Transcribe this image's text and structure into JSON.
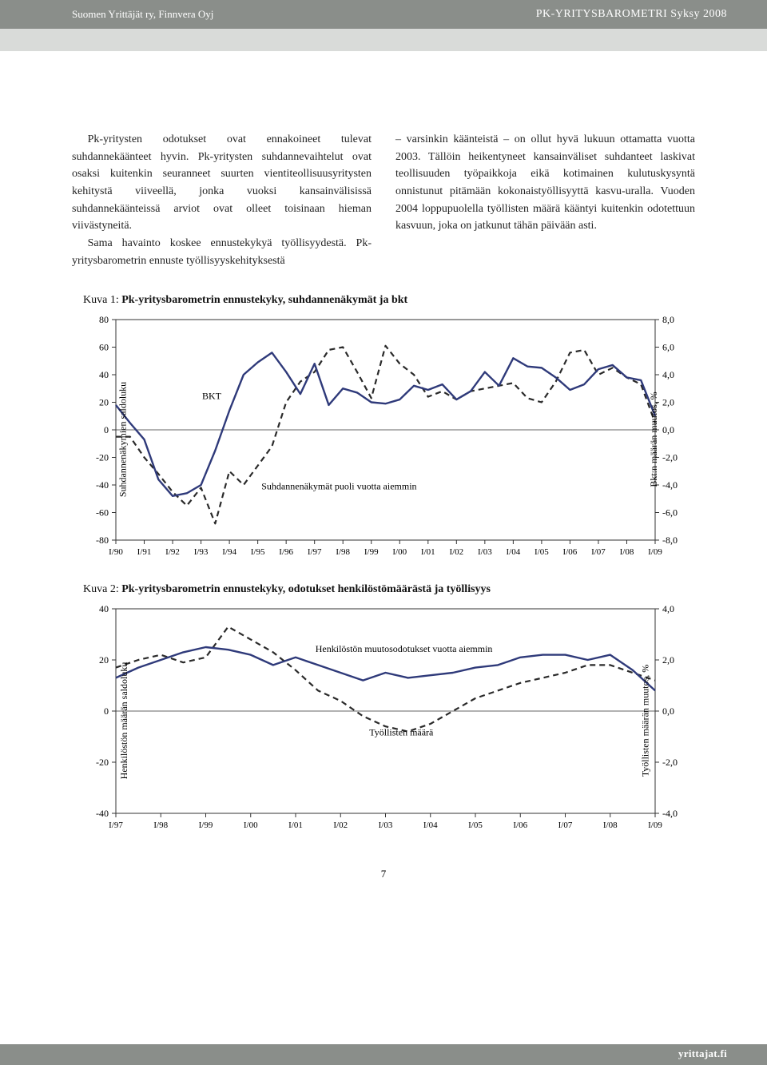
{
  "header": {
    "left": "Suomen Yrittäjät ry, Finnvera Oyj",
    "right_prefix": "PK-YRITYSBAROMETRI",
    "right_suffix": " Syksy 2008"
  },
  "body": {
    "col1_p1": "Pk-yritysten odotukset ovat ennakoineet tulevat suhdannekäänteet hyvin. Pk-yritysten suhdannevaihtelut ovat osaksi kuitenkin seuranneet suurten vientiteollisuusyritysten kehitystä viiveellä, jonka vuoksi kansainvälisissä suhdannekäänteissä arviot ovat olleet toisinaan hieman viivästyneitä.",
    "col1_p2": "Sama havainto koskee ennustekykyä työllisyydestä. Pk-yritysbarometrin ennuste työllisyyskehityksestä",
    "col2_p1": "– varsinkin käänteistä – on ollut hyvä lukuun ottamatta vuotta 2003. Tällöin heikentyneet kansainväliset suhdanteet laskivat teollisuuden työpaikkoja eikä kotimainen kulutuskysyntä onnistunut pitämään kokonaistyöllisyyttä kasvu-uralla. Vuoden 2004 loppupuolella työllisten määrä kääntyi kuitenkin odotettuun kasvuun, joka on jatkunut tähän päivään asti."
  },
  "chart1": {
    "prefix": "Kuva 1:  ",
    "title": "Pk-yritysbarometrin ennustekyky, suhdannenäkymät ja bkt",
    "left_axis_label": "Suhdannenäkymien saldoluku",
    "right_axis_label": "Bkt:n määrän muutos, %",
    "series_label_1": "BKT",
    "series_label_2": "Suhdannenäkymät puoli vuotta aiemmin",
    "y_left": {
      "min": -80,
      "max": 80,
      "ticks": [
        -80,
        -60,
        -40,
        -20,
        0,
        20,
        40,
        60,
        80
      ]
    },
    "y_right": {
      "min": -8.0,
      "max": 8.0,
      "ticks": [
        "-8,0",
        "-6,0",
        "-4,0",
        "-2,0",
        "0,0",
        "2,0",
        "4,0",
        "6,0",
        "8,0"
      ]
    },
    "x_labels": [
      "I/90",
      "I/91",
      "I/92",
      "I/93",
      "I/94",
      "I/95",
      "I/96",
      "I/97",
      "I/98",
      "I/99",
      "I/00",
      "I/01",
      "I/02",
      "I/03",
      "I/04",
      "I/05",
      "I/06",
      "I/07",
      "I/08",
      "I/09"
    ],
    "series_solid": [
      18,
      5,
      -7,
      -36,
      -48,
      -46,
      -40,
      -15,
      14,
      40,
      49,
      56,
      42,
      26,
      48,
      18,
      30,
      27,
      20,
      19,
      22,
      32,
      29,
      33,
      22,
      28,
      42,
      32,
      52,
      46,
      45,
      38,
      29,
      33,
      44,
      47,
      38,
      36,
      10
    ],
    "series_dashed": [
      -5,
      -5,
      -20,
      -32,
      -45,
      -55,
      -42,
      -68,
      -30,
      -40,
      -26,
      -12,
      20,
      35,
      42,
      58,
      60,
      42,
      23,
      61,
      48,
      40,
      24,
      28,
      22,
      28,
      30,
      32,
      34,
      23,
      20,
      35,
      56,
      58,
      40,
      45,
      38,
      33,
      5
    ],
    "colors": {
      "solid": "#2f3a7a",
      "dashed": "#2a2a2a",
      "axis": "#333333",
      "grid": "#888888",
      "bg": "#ffffff"
    },
    "line_width_solid": 2.4,
    "line_width_dashed": 2.2,
    "dash_pattern": "7,5"
  },
  "chart2": {
    "prefix": "Kuva 2:  ",
    "title": "Pk-yritysbarometrin ennustekyky, odotukset henkilöstömäärästä ja työllisyys",
    "left_axis_label": "Henkilöstön määrän saldoluku",
    "right_axis_label": "Työllisten määrän muutos, %",
    "series_label_1": "Henkilöstön muutosodotukset vuotta aiemmin",
    "series_label_2": "Työllisten määrä",
    "y_left": {
      "min": -40,
      "max": 40,
      "ticks": [
        -40,
        -20,
        0,
        20,
        40
      ]
    },
    "y_right": {
      "min": -4.0,
      "max": 4.0,
      "ticks": [
        "-4,0",
        "-2,0",
        "0,0",
        "2,0",
        "4,0"
      ]
    },
    "x_labels": [
      "I/97",
      "I/98",
      "I/99",
      "I/00",
      "I/01",
      "I/02",
      "I/03",
      "I/04",
      "I/05",
      "I/06",
      "I/07",
      "I/08",
      "I/09"
    ],
    "series_solid": [
      13,
      17,
      20,
      23,
      25,
      24,
      22,
      18,
      21,
      18,
      15,
      12,
      15,
      13,
      14,
      15,
      17,
      18,
      21,
      22,
      22,
      20,
      22,
      16,
      8
    ],
    "series_dashed": [
      17,
      20,
      22,
      19,
      21,
      33,
      28,
      23,
      16,
      8,
      4,
      -2,
      -6,
      -8,
      -5,
      0,
      5,
      8,
      11,
      13,
      15,
      18,
      18,
      15,
      12
    ],
    "colors": {
      "solid": "#2f3a7a",
      "dashed": "#2a2a2a",
      "axis": "#333333",
      "bg": "#ffffff"
    },
    "line_width_solid": 2.4,
    "line_width_dashed": 2.2,
    "dash_pattern": "7,5"
  },
  "page_number": "7",
  "footer": "yrittajat.fi"
}
